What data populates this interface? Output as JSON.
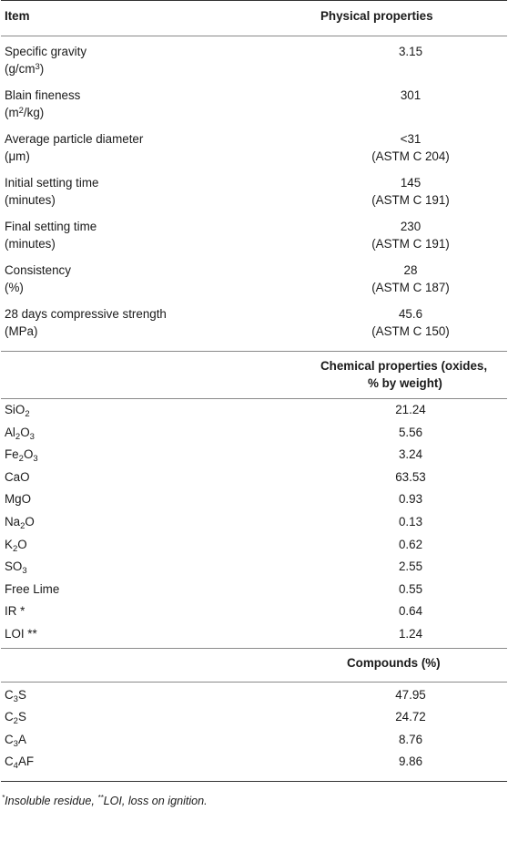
{
  "header": {
    "item": "Item",
    "physical": "Physical properties"
  },
  "physical_rows": [
    {
      "name": "Specific gravity",
      "unit_pre": "(g/cm",
      "unit_sup": "3",
      "unit_post": ")",
      "value": "3.15",
      "standard": ""
    },
    {
      "name": "Blain fineness",
      "unit_pre": "(m",
      "unit_sup": "2",
      "unit_post": "/kg)",
      "value": "301",
      "standard": ""
    },
    {
      "name": "Average particle diameter",
      "unit_pre": "(μm)",
      "unit_sup": "",
      "unit_post": "",
      "value": "<31",
      "standard": "(ASTM C 204)"
    },
    {
      "name": "Initial setting time",
      "unit_pre": "(minutes)",
      "unit_sup": "",
      "unit_post": "",
      "value": "145",
      "standard": "(ASTM C 191)"
    },
    {
      "name": "Final setting time",
      "unit_pre": "(minutes)",
      "unit_sup": "",
      "unit_post": "",
      "value": "230",
      "standard": "(ASTM C 191)"
    },
    {
      "name": "Consistency",
      "unit_pre": "(%)",
      "unit_sup": "",
      "unit_post": "",
      "value": "28",
      "standard": "(ASTM C 187)"
    },
    {
      "name": "28 days compressive strength",
      "unit_pre": "(MPa)",
      "unit_sup": "",
      "unit_post": "",
      "value": "45.6",
      "standard": "(ASTM C 150)"
    }
  ],
  "chemical_header": {
    "line1": "Chemical properties (oxides,",
    "line2": "% by weight)"
  },
  "chemical_rows": [
    {
      "a": "SiO",
      "sub1": "2",
      "b": "",
      "sub2": "",
      "value": "21.24"
    },
    {
      "a": "Al",
      "sub1": "2",
      "b": "O",
      "sub2": "3",
      "value": "5.56"
    },
    {
      "a": "Fe",
      "sub1": "2",
      "b": "O",
      "sub2": "3",
      "value": "3.24"
    },
    {
      "a": "CaO",
      "sub1": "",
      "b": "",
      "sub2": "",
      "value": "63.53"
    },
    {
      "a": "MgO",
      "sub1": "",
      "b": "",
      "sub2": "",
      "value": "0.93"
    },
    {
      "a": "Na",
      "sub1": "2",
      "b": "O",
      "sub2": "",
      "value": "0.13"
    },
    {
      "a": "K",
      "sub1": "2",
      "b": "O",
      "sub2": "",
      "value": "0.62"
    },
    {
      "a": "SO",
      "sub1": "3",
      "b": "",
      "sub2": "",
      "value": "2.55"
    },
    {
      "a": "Free Lime",
      "sub1": "",
      "b": "",
      "sub2": "",
      "value": "0.55"
    },
    {
      "a": "IR *",
      "sub1": "",
      "b": "",
      "sub2": "",
      "value": "0.64"
    },
    {
      "a": "LOI **",
      "sub1": "",
      "b": "",
      "sub2": "",
      "value": "1.24"
    }
  ],
  "compounds_header": "Compounds (%)",
  "compound_rows": [
    {
      "a": "C",
      "sub1": "3",
      "b": "S",
      "value": "47.95"
    },
    {
      "a": "C",
      "sub1": "2",
      "b": "S",
      "value": "24.72"
    },
    {
      "a": "C",
      "sub1": "3",
      "b": "A",
      "value": "8.76"
    },
    {
      "a": "C",
      "sub1": "4",
      "b": "AF",
      "value": "9.86"
    }
  ],
  "footnote": {
    "mark1": "*",
    "text1": "Insoluble residue, ",
    "mark2": "**",
    "text2": "LOI, loss on ignition."
  }
}
